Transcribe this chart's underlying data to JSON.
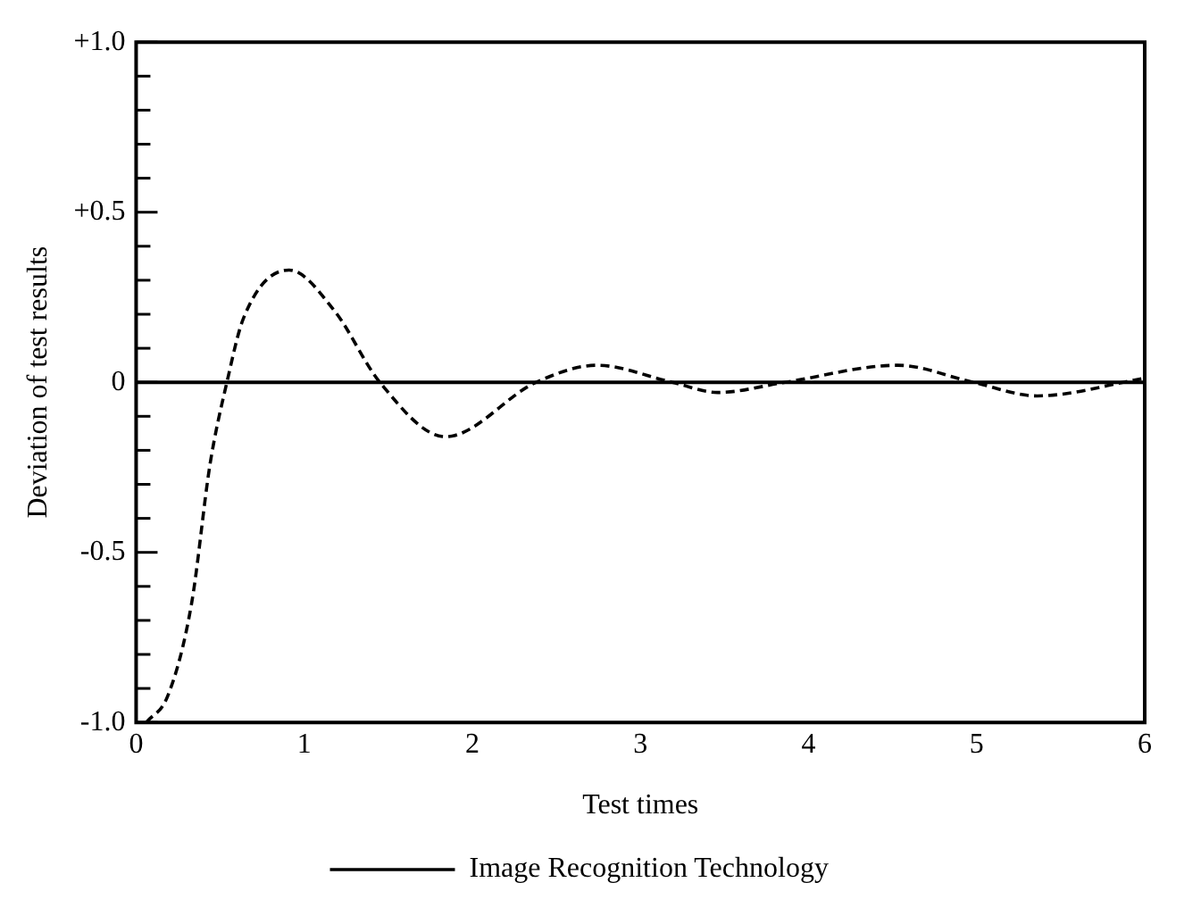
{
  "chart_data": {
    "type": "line",
    "xlabel": "Test times",
    "ylabel": "Deviation of test results",
    "x": [
      0.06,
      0.19,
      0.33,
      0.44,
      0.54,
      0.64,
      0.91,
      1.18,
      1.45,
      1.84,
      2.38,
      2.74,
      3.19,
      3.46,
      3.86,
      4.53,
      4.98,
      5.36,
      5.98
    ],
    "series": [
      {
        "name": "Image Recognition Technology",
        "color": "#000000",
        "values": [
          -1.0,
          -0.92,
          -0.65,
          -0.24,
          0,
          0.19,
          0.33,
          0.21,
          0,
          -0.16,
          0,
          0.05,
          0,
          -0.03,
          0,
          0.05,
          0,
          -0.04,
          0.01
        ]
      }
    ],
    "xlim": [
      0,
      6
    ],
    "xticks": [
      0,
      1,
      2,
      3,
      4,
      5,
      6
    ],
    "ylim": [
      -1,
      1
    ],
    "yticks": [
      {
        "value": -1,
        "label": "-1.0"
      },
      {
        "value": -0.9,
        "label": null
      },
      {
        "value": -0.8,
        "label": null
      },
      {
        "value": -0.7,
        "label": null
      },
      {
        "value": -0.6,
        "label": null
      },
      {
        "value": -0.5,
        "label": "-0.5"
      },
      {
        "value": -0.4,
        "label": null
      },
      {
        "value": -0.3,
        "label": null
      },
      {
        "value": -0.2,
        "label": null
      },
      {
        "value": -0.1,
        "label": null
      },
      0,
      {
        "value": 0.1,
        "label": null
      },
      {
        "value": 0.2,
        "label": null
      },
      {
        "value": 0.3,
        "label": null
      },
      {
        "value": 0.4,
        "label": null
      },
      {
        "value": 0.5,
        "label": "+0.5"
      },
      {
        "value": 0.6,
        "label": null
      },
      {
        "value": 0.7,
        "label": null
      },
      {
        "value": 0.8,
        "label": null
      },
      {
        "value": 0.9,
        "label": null
      },
      {
        "value": 1,
        "label": "+1.0"
      }
    ],
    "ref_lines": [
      {
        "axis": "y",
        "value": 0,
        "color": "#000000",
        "line_style": "solid"
      }
    ],
    "grid": false,
    "legend": "bottom",
    "marker": "none",
    "line_style": "dashed"
  }
}
